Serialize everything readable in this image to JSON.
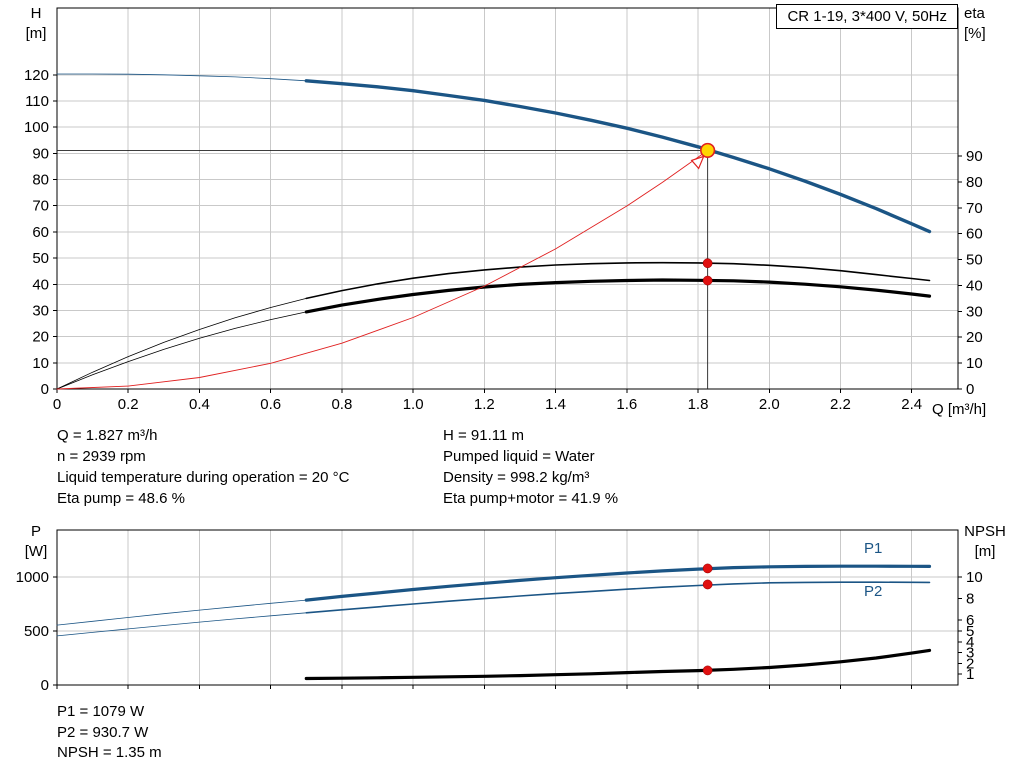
{
  "title_box": "CR 1-19, 3*400 V, 50Hz",
  "colors": {
    "curve_blue": "#1b5585",
    "curve_black": "#000000",
    "curve_red": "#e02020",
    "marker_red": "#e01010",
    "duty_yellow": "#ffd500",
    "grid": "#c9c9c9"
  },
  "info": {
    "left": [
      "Q = 1.827 m³/h",
      "n = 2939 rpm",
      "Liquid temperature during operation = 20 °C",
      "Eta pump = 48.6 %"
    ],
    "right": [
      "H = 91.11 m",
      "Pumped liquid = Water",
      "Density = 998.2 kg/m³",
      "Eta pump+motor = 41.9 %"
    ]
  },
  "footer": [
    "P1 = 1079 W",
    "P2 = 930.7 W",
    "NPSH = 1.35 m"
  ],
  "chart_data": [
    {
      "id": "head",
      "name": "head-efficiency-chart",
      "type": "line",
      "title": "CR 1-19, 3*400 V, 50Hz",
      "x": {
        "label": "Q [m³/h]",
        "min": 0,
        "max": 2.53,
        "ticks": [
          0,
          0.2,
          0.4,
          0.6,
          0.8,
          1.0,
          1.2,
          1.4,
          1.6,
          1.8,
          2.0,
          2.2,
          2.4
        ],
        "tick_labels": [
          "0",
          "0.2",
          "0.4",
          "0.6",
          "0.8",
          "1.0",
          "1.2",
          "1.4",
          "1.6",
          "1.8",
          "2.0",
          "2.2",
          "2.4"
        ]
      },
      "y_left": {
        "label": [
          "H",
          "[m]"
        ],
        "min": 0,
        "max": 145.5,
        "ticks": [
          0,
          10,
          20,
          30,
          40,
          50,
          60,
          70,
          80,
          90,
          100,
          110,
          120
        ],
        "tick_labels": [
          "0",
          "10",
          "20",
          "30",
          "40",
          "50",
          "60",
          "70",
          "80",
          "90",
          "100",
          "110",
          "120"
        ]
      },
      "y_right": {
        "label": [
          "eta",
          "[%]"
        ],
        "min": 0,
        "max": 147.2,
        "ticks": [
          0,
          10,
          20,
          30,
          40,
          50,
          60,
          70,
          80,
          90
        ],
        "tick_labels": [
          "0",
          "10",
          "20",
          "30",
          "40",
          "50",
          "60",
          "70",
          "80",
          "90"
        ]
      },
      "duty_point": {
        "q": 1.827,
        "h": 91.11
      },
      "series": [
        {
          "name": "qh-curve",
          "axis": "left",
          "color": "#1b5585",
          "width": 3.4,
          "thin_until": 0.7,
          "points": [
            [
              0,
              120.3
            ],
            [
              0.1,
              120.3
            ],
            [
              0.2,
              120.2
            ],
            [
              0.3,
              120.0
            ],
            [
              0.4,
              119.6
            ],
            [
              0.5,
              119.2
            ],
            [
              0.6,
              118.5
            ],
            [
              0.7,
              117.7
            ],
            [
              0.8,
              116.6
            ],
            [
              0.9,
              115.4
            ],
            [
              1.0,
              113.9
            ],
            [
              1.1,
              112.1
            ],
            [
              1.2,
              110.2
            ],
            [
              1.3,
              107.9
            ],
            [
              1.4,
              105.4
            ],
            [
              1.5,
              102.6
            ],
            [
              1.6,
              99.6
            ],
            [
              1.7,
              96.2
            ],
            [
              1.8,
              92.5
            ],
            [
              1.9,
              88.4
            ],
            [
              2.0,
              84.1
            ],
            [
              2.1,
              79.4
            ],
            [
              2.2,
              74.3
            ],
            [
              2.3,
              68.9
            ],
            [
              2.4,
              63.1
            ],
            [
              2.45,
              60.1
            ]
          ]
        },
        {
          "name": "eta-pump-curve",
          "axis": "right",
          "color": "#000000",
          "width": 1.6,
          "thin_until": 0.7,
          "points": [
            [
              0,
              0
            ],
            [
              0.1,
              6.5
            ],
            [
              0.2,
              12.5
            ],
            [
              0.3,
              18.0
            ],
            [
              0.4,
              23.0
            ],
            [
              0.5,
              27.5
            ],
            [
              0.6,
              31.5
            ],
            [
              0.7,
              35.0
            ],
            [
              0.8,
              38.0
            ],
            [
              0.9,
              40.6
            ],
            [
              1.0,
              42.8
            ],
            [
              1.1,
              44.6
            ],
            [
              1.2,
              46.0
            ],
            [
              1.3,
              47.1
            ],
            [
              1.4,
              47.9
            ],
            [
              1.5,
              48.4
            ],
            [
              1.6,
              48.7
            ],
            [
              1.7,
              48.8
            ],
            [
              1.8,
              48.7
            ],
            [
              1.9,
              48.4
            ],
            [
              2.0,
              47.8
            ],
            [
              2.1,
              46.9
            ],
            [
              2.2,
              45.7
            ],
            [
              2.3,
              44.2
            ],
            [
              2.4,
              42.7
            ],
            [
              2.45,
              41.9
            ]
          ]
        },
        {
          "name": "eta-pump-motor-curve",
          "axis": "right",
          "color": "#000000",
          "width": 3.2,
          "thin_until": 0.7,
          "points": [
            [
              0,
              0
            ],
            [
              0.1,
              5.5
            ],
            [
              0.2,
              10.6
            ],
            [
              0.3,
              15.3
            ],
            [
              0.4,
              19.6
            ],
            [
              0.5,
              23.4
            ],
            [
              0.6,
              26.8
            ],
            [
              0.7,
              29.8
            ],
            [
              0.8,
              32.4
            ],
            [
              0.9,
              34.6
            ],
            [
              1.0,
              36.5
            ],
            [
              1.1,
              38.1
            ],
            [
              1.2,
              39.4
            ],
            [
              1.3,
              40.4
            ],
            [
              1.4,
              41.1
            ],
            [
              1.5,
              41.6
            ],
            [
              1.6,
              41.9
            ],
            [
              1.7,
              42.1
            ],
            [
              1.8,
              42.0
            ],
            [
              1.9,
              41.8
            ],
            [
              2.0,
              41.3
            ],
            [
              2.1,
              40.5
            ],
            [
              2.2,
              39.5
            ],
            [
              2.3,
              38.2
            ],
            [
              2.4,
              36.7
            ],
            [
              2.45,
              35.9
            ]
          ]
        },
        {
          "name": "system-curve",
          "axis": "left",
          "color": "#e02020",
          "width": 0.9,
          "points": [
            [
              0,
              0
            ],
            [
              0.2,
              1.1
            ],
            [
              0.4,
              4.4
            ],
            [
              0.6,
              9.8
            ],
            [
              0.8,
              17.5
            ],
            [
              1.0,
              27.3
            ],
            [
              1.2,
              39.3
            ],
            [
              1.4,
              53.5
            ],
            [
              1.6,
              69.9
            ],
            [
              1.7,
              78.9
            ],
            [
              1.8,
              88.5
            ],
            [
              1.827,
              91.11
            ]
          ]
        }
      ],
      "markers": [
        {
          "name": "duty-point-marker",
          "style": "duty",
          "axis": "left",
          "q": 1.827,
          "value": 91.11
        },
        {
          "name": "eta-pump-point",
          "style": "dot",
          "axis": "right",
          "q": 1.827,
          "value": 48.6
        },
        {
          "name": "eta-pump-motor-point",
          "style": "dot",
          "axis": "right",
          "q": 1.827,
          "value": 41.9
        }
      ]
    },
    {
      "id": "power",
      "name": "power-npsh-chart",
      "type": "line",
      "title": "",
      "x": {
        "label": "",
        "min": 0,
        "max": 2.53,
        "ticks": [
          0,
          0.2,
          0.4,
          0.6,
          0.8,
          1.0,
          1.2,
          1.4,
          1.6,
          1.8,
          2.0,
          2.2,
          2.4
        ],
        "tick_labels": null
      },
      "y_left": {
        "label": [
          "P",
          "[W]"
        ],
        "min": 0,
        "max": 1435,
        "ticks": [
          0,
          500,
          1000
        ],
        "tick_labels": [
          "0",
          "500",
          "1000"
        ]
      },
      "y_right": {
        "label": [
          "NPSH",
          "[m]"
        ],
        "min": 0,
        "max": 14.35,
        "ticks": [
          1,
          2,
          3,
          4,
          5,
          6,
          8,
          10
        ],
        "tick_labels": [
          "1",
          "2",
          "3",
          "4",
          "5",
          "6",
          "8",
          "10"
        ]
      },
      "series_labels": [
        {
          "text": "P1"
        },
        {
          "text": "P2"
        }
      ],
      "series": [
        {
          "name": "p1-curve",
          "axis": "left",
          "color": "#1b5585",
          "width": 3.2,
          "thin_until": 0.7,
          "points": [
            [
              0,
              555
            ],
            [
              0.1,
              590
            ],
            [
              0.2,
              625
            ],
            [
              0.3,
              660
            ],
            [
              0.4,
              693
            ],
            [
              0.5,
              725
            ],
            [
              0.6,
              756
            ],
            [
              0.7,
              786
            ],
            [
              0.8,
              820
            ],
            [
              0.9,
              852
            ],
            [
              1.0,
              884
            ],
            [
              1.1,
              914
            ],
            [
              1.2,
              942
            ],
            [
              1.3,
              968
            ],
            [
              1.4,
              993
            ],
            [
              1.5,
              1016
            ],
            [
              1.6,
              1037
            ],
            [
              1.7,
              1056
            ],
            [
              1.8,
              1073
            ],
            [
              1.9,
              1087
            ],
            [
              2.0,
              1094
            ],
            [
              2.1,
              1098
            ],
            [
              2.2,
              1100
            ],
            [
              2.3,
              1100
            ],
            [
              2.4,
              1099
            ],
            [
              2.45,
              1098
            ]
          ]
        },
        {
          "name": "p2-curve",
          "axis": "left",
          "color": "#1b5585",
          "width": 1.6,
          "thin_until": 0.7,
          "points": [
            [
              0,
              455
            ],
            [
              0.1,
              487
            ],
            [
              0.2,
              519
            ],
            [
              0.3,
              551
            ],
            [
              0.4,
              582
            ],
            [
              0.5,
              612
            ],
            [
              0.6,
              641
            ],
            [
              0.7,
              668
            ],
            [
              0.8,
              696
            ],
            [
              0.9,
              723
            ],
            [
              1.0,
              750
            ],
            [
              1.1,
              776
            ],
            [
              1.2,
              800
            ],
            [
              1.3,
              824
            ],
            [
              1.4,
              846
            ],
            [
              1.5,
              867
            ],
            [
              1.6,
              887
            ],
            [
              1.7,
              905
            ],
            [
              1.8,
              921
            ],
            [
              1.9,
              936
            ],
            [
              2.0,
              946
            ],
            [
              2.1,
              950
            ],
            [
              2.2,
              952
            ],
            [
              2.3,
              952
            ],
            [
              2.4,
              951
            ],
            [
              2.45,
              950
            ]
          ]
        },
        {
          "name": "npsh-curve",
          "axis": "right",
          "color": "#000000",
          "width": 3.2,
          "points": [
            [
              0.7,
              0.6
            ],
            [
              0.8,
              0.63
            ],
            [
              0.9,
              0.67
            ],
            [
              1.0,
              0.71
            ],
            [
              1.1,
              0.76
            ],
            [
              1.2,
              0.81
            ],
            [
              1.3,
              0.87
            ],
            [
              1.4,
              0.95
            ],
            [
              1.5,
              1.04
            ],
            [
              1.6,
              1.15
            ],
            [
              1.7,
              1.25
            ],
            [
              1.8,
              1.33
            ],
            [
              1.9,
              1.45
            ],
            [
              2.0,
              1.62
            ],
            [
              2.1,
              1.85
            ],
            [
              2.2,
              2.15
            ],
            [
              2.3,
              2.5
            ],
            [
              2.4,
              2.95
            ],
            [
              2.45,
              3.2
            ]
          ]
        }
      ],
      "markers": [
        {
          "name": "p1-point",
          "style": "dot",
          "axis": "left",
          "q": 1.827,
          "value": 1079
        },
        {
          "name": "p2-point",
          "style": "dot",
          "axis": "left",
          "q": 1.827,
          "value": 930.7
        },
        {
          "name": "npsh-point",
          "style": "dot",
          "axis": "right",
          "q": 1.827,
          "value": 1.35
        }
      ]
    }
  ]
}
